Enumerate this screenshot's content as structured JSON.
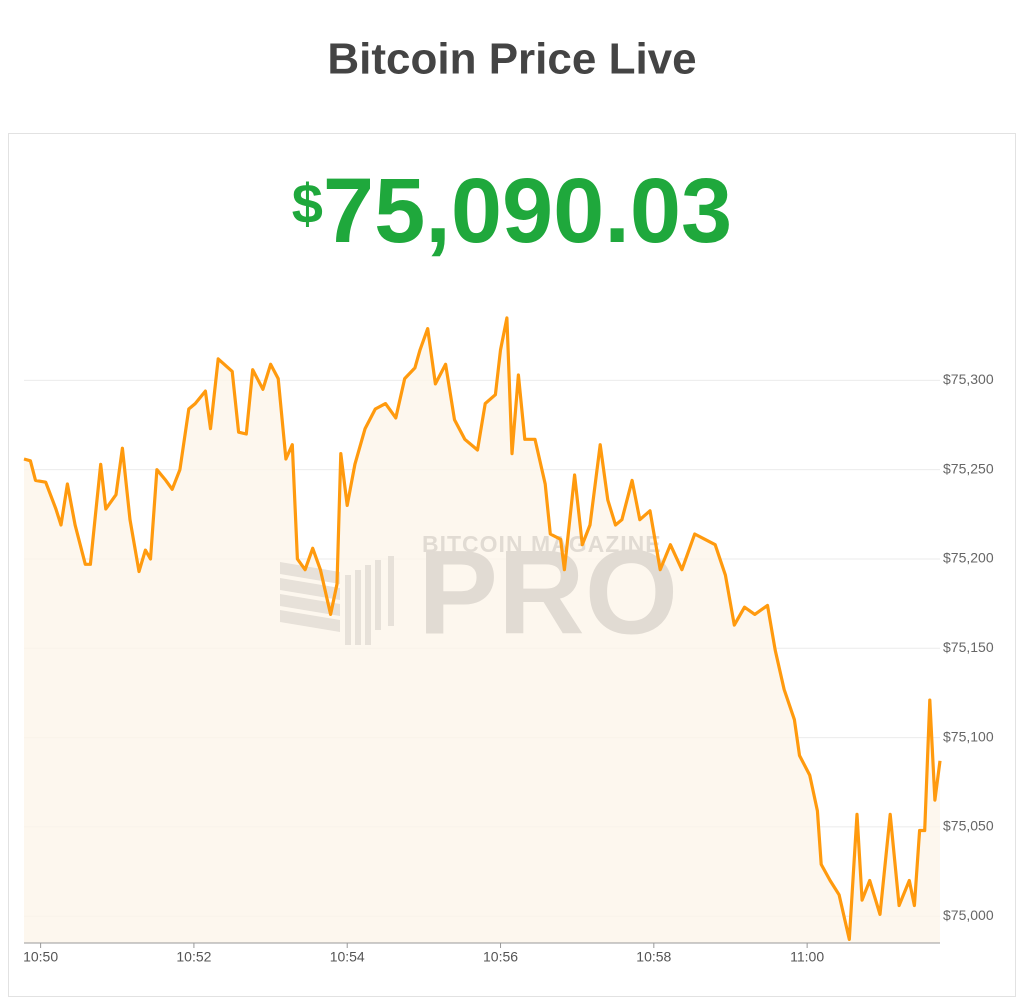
{
  "chart_data": {
    "type": "area",
    "title": "Bitcoin Price Live",
    "currency": "$",
    "price": "75,090.03",
    "watermark": [
      "BITCOIN MAGAZINE",
      "PRO"
    ],
    "color": "#ff9a0e",
    "area_color": "#fdf5ea",
    "grid": true,
    "x": [
      "10:49:47",
      "10:49:52",
      "10:49:56",
      "10:50:04",
      "10:50:12",
      "10:50:16",
      "10:50:21",
      "10:50:27",
      "10:50:35",
      "10:50:39",
      "10:50:43",
      "10:50:47",
      "10:50:51",
      "10:50:59",
      "10:51:04",
      "10:51:10",
      "10:51:17",
      "10:51:22",
      "10:51:26",
      "10:51:31",
      "10:51:38",
      "10:51:43",
      "10:51:49",
      "10:51:56",
      "10:52:01",
      "10:52:09",
      "10:52:13",
      "10:52:19",
      "10:52:30",
      "10:52:35",
      "10:52:41",
      "10:52:46",
      "10:52:54",
      "10:53:00",
      "10:53:06",
      "10:53:12",
      "10:53:17",
      "10:53:21",
      "10:53:27",
      "10:53:33",
      "10:53:39",
      "10:53:47",
      "10:53:52",
      "10:53:55",
      "10:54:00",
      "10:54:06",
      "10:54:14",
      "10:54:22",
      "10:54:30",
      "10:54:38",
      "10:54:45",
      "10:54:53",
      "10:54:57",
      "10:55:03",
      "10:55:09",
      "10:55:17",
      "10:55:24",
      "10:55:32",
      "10:55:42",
      "10:55:48",
      "10:55:56",
      "10:56:00",
      "10:56:05",
      "10:56:09",
      "10:56:14",
      "10:56:19",
      "10:56:27",
      "10:56:35",
      "10:56:39",
      "10:56:47",
      "10:56:50",
      "10:56:58",
      "10:57:04",
      "10:57:10",
      "10:57:18",
      "10:57:24",
      "10:57:30",
      "10:57:35",
      "10:57:43",
      "10:57:49",
      "10:57:57",
      "10:58:05",
      "10:58:13",
      "10:58:22",
      "10:58:32",
      "10:58:40",
      "10:58:48",
      "10:58:56",
      "10:59:03",
      "10:59:11",
      "10:59:19",
      "10:59:29",
      "10:59:35",
      "10:59:42",
      "10:59:50",
      "10:59:54",
      "11:00:02",
      "11:00:08",
      "11:00:11",
      "11:00:18",
      "11:00:25",
      "11:00:33",
      "11:00:39",
      "11:00:43",
      "11:00:49",
      "11:00:57",
      "11:01:05",
      "11:01:12",
      "11:01:20",
      "11:01:24",
      "11:01:28",
      "11:01:32",
      "11:01:36",
      "11:01:40",
      "11:01:44"
    ],
    "values": [
      75256,
      75255,
      75244,
      75243,
      75228,
      75219,
      75242,
      75219,
      75197,
      75197,
      75225,
      75253,
      75228,
      75236,
      75262,
      75222,
      75193,
      75205,
      75200,
      75250,
      75244,
      75239,
      75250,
      75284,
      75287,
      75294,
      75273,
      75312,
      75305,
      75271,
      75270,
      75306,
      75295,
      75309,
      75301,
      75256,
      75264,
      75200,
      75194,
      75206,
      75194,
      75169,
      75186,
      75259,
      75230,
      75253,
      75273,
      75284,
      75287,
      75279,
      75301,
      75307,
      75317,
      75329,
      75298,
      75309,
      75278,
      75267,
      75261,
      75287,
      75292,
      75317,
      75335,
      75259,
      75303,
      75267,
      75267,
      75242,
      75214,
      75211,
      75194,
      75247,
      75208,
      75219,
      75264,
      75233,
      75219,
      75222,
      75244,
      75222,
      75227,
      75194,
      75208,
      75194,
      75214,
      75211,
      75208,
      75191,
      75163,
      75173,
      75169,
      75174,
      75149,
      75127,
      75110,
      75090,
      75079,
      75059,
      75029,
      75020,
      75012,
      74987,
      75057,
      75009,
      75020,
      75001,
      75057,
      75006,
      75020,
      75006,
      75048,
      75048,
      75121,
      75065,
      75087
    ],
    "xlim": [
      "10:49:47",
      "11:01:44"
    ],
    "xticks": [
      "10:50",
      "10:52",
      "10:54",
      "10:56",
      "10:58",
      "11:00"
    ],
    "ylim": [
      74985,
      75345
    ],
    "yticks": [
      {
        "value": 75000,
        "label": "$75,000"
      },
      {
        "value": 75050,
        "label": "$75,050"
      },
      {
        "value": 75100,
        "label": "$75,100"
      },
      {
        "value": 75150,
        "label": "$75,150"
      },
      {
        "value": 75200,
        "label": "$75,200"
      },
      {
        "value": 75250,
        "label": "$75,250"
      },
      {
        "value": 75300,
        "label": "$75,300"
      }
    ]
  }
}
